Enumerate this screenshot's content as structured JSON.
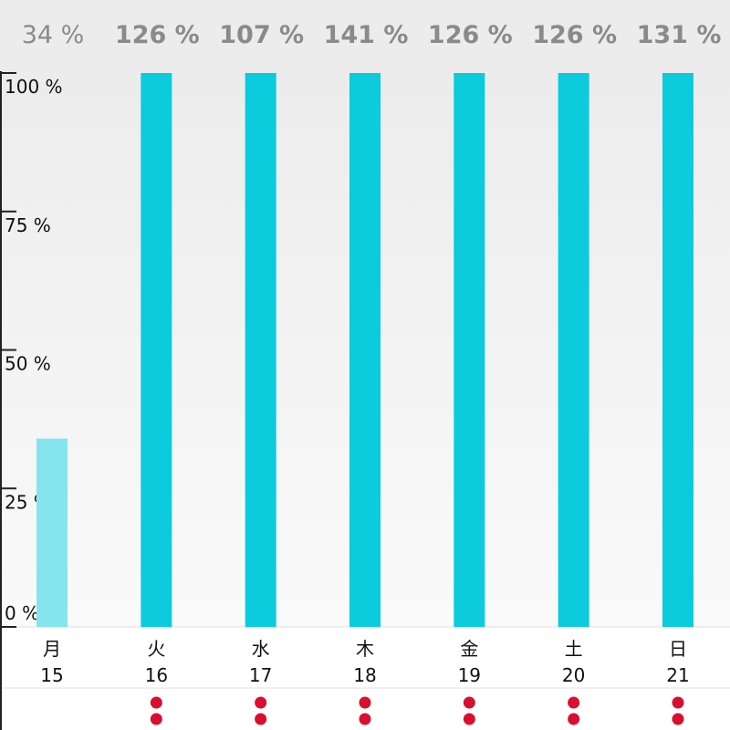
{
  "chart_data": {
    "type": "bar",
    "categories": [
      "月",
      "火",
      "水",
      "木",
      "金",
      "土",
      "日"
    ],
    "day_numbers": [
      "15",
      "16",
      "17",
      "18",
      "19",
      "20",
      "21"
    ],
    "values": [
      34,
      126,
      107,
      141,
      126,
      126,
      131
    ],
    "value_labels": [
      "34 %",
      "126 %",
      "107 %",
      "141 %",
      "126 %",
      "126 %",
      "131 %"
    ],
    "highlight": [
      false,
      true,
      true,
      true,
      true,
      true,
      true
    ],
    "ylim": [
      0,
      100
    ],
    "yticks": [
      0,
      25,
      50,
      75,
      100
    ],
    "ytick_labels": [
      "0 %",
      "25 %",
      "50 %",
      "75 %",
      "100 %"
    ],
    "markers_per_day": [
      0,
      2,
      2,
      2,
      2,
      2,
      2
    ],
    "title": "",
    "xlabel": "",
    "ylabel": "",
    "grid": false
  },
  "colors": {
    "bar": "#0bcbdc",
    "bar_dim": "#85e5ef",
    "label": "#8a8a8a",
    "marker": "#d80f2f",
    "header_bg": "#ececec",
    "axis": "#222222"
  }
}
